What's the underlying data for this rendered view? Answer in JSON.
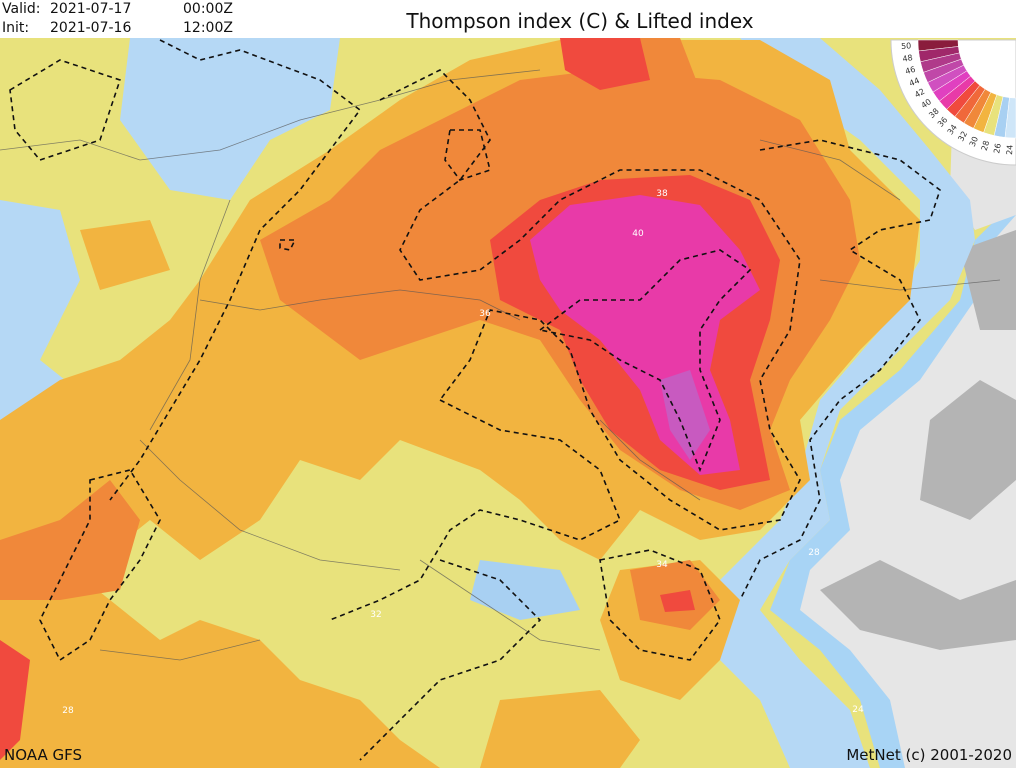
{
  "header": {
    "valid_label": "Valid:",
    "valid_date": "2021-07-17",
    "valid_time": "00:00Z",
    "init_label": "Init:",
    "init_date": "2021-07-16",
    "init_time": "12:00Z",
    "title": "Thompson index (C) & Lifted index"
  },
  "legend": {
    "labels": [
      "50",
      "48",
      "46",
      "44",
      "42",
      "40",
      "38",
      "36",
      "34",
      "32",
      "30",
      "28",
      "26",
      "24"
    ]
  },
  "contour_labels": [
    "38",
    "40",
    "36",
    "34",
    "32",
    "28",
    "28",
    "24"
  ],
  "footer": {
    "source": "NOAA GFS",
    "credit": "MetNet (c) 2001-2020"
  }
}
